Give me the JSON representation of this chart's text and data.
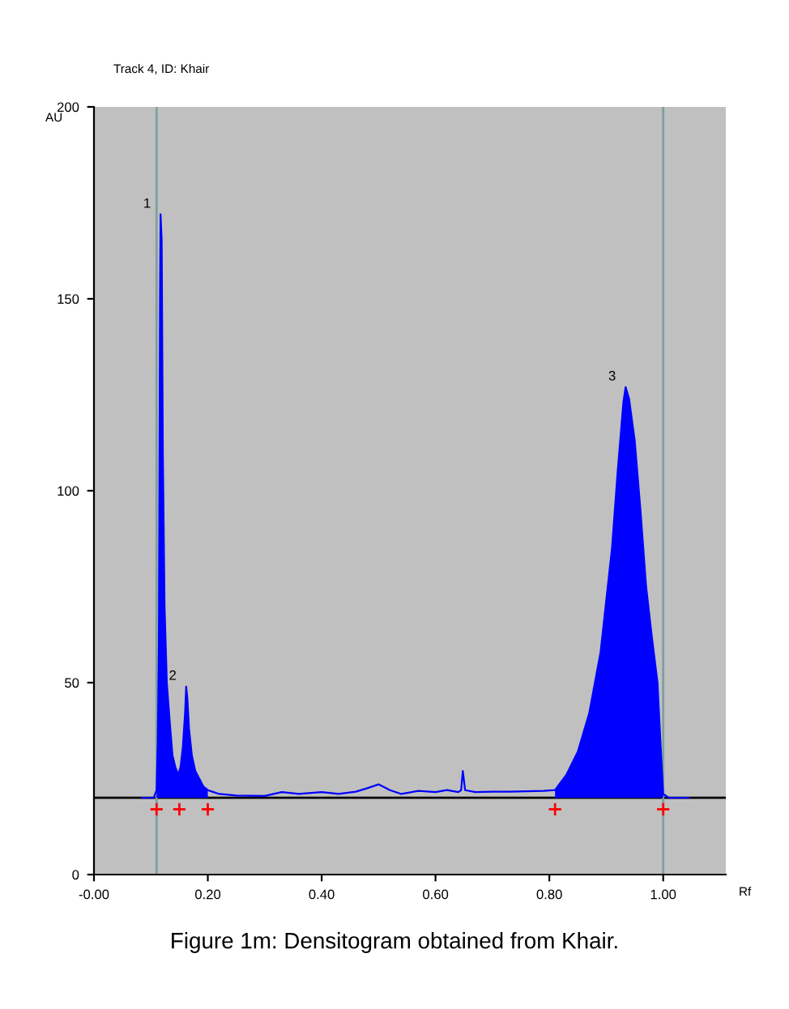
{
  "chart_data": {
    "type": "line",
    "title": "Track 4, ID: Khair",
    "xlabel": "Rf",
    "ylabel": "AU",
    "xlim": [
      0.0,
      1.11
    ],
    "ylim": [
      0,
      200
    ],
    "xticks": [
      {
        "value": 0.0,
        "label": "-0.00"
      },
      {
        "value": 0.2,
        "label": "0.20"
      },
      {
        "value": 0.4,
        "label": "0.40"
      },
      {
        "value": 0.6,
        "label": "0.60"
      },
      {
        "value": 0.8,
        "label": "0.80"
      },
      {
        "value": 1.0,
        "label": "1.00"
      }
    ],
    "yticks": [
      0,
      50,
      100,
      150,
      200
    ],
    "grid": false,
    "legend": false,
    "series": [
      {
        "color": "#0000ff",
        "x": [
          0.085,
          0.105,
          0.11,
          0.112,
          0.114,
          0.116,
          0.117,
          0.119,
          0.121,
          0.124,
          0.128,
          0.133,
          0.138,
          0.143,
          0.148,
          0.152,
          0.156,
          0.16,
          0.162,
          0.164,
          0.167,
          0.172,
          0.178,
          0.185,
          0.192,
          0.2,
          0.21,
          0.22,
          0.25,
          0.3,
          0.33,
          0.36,
          0.4,
          0.43,
          0.46,
          0.48,
          0.5,
          0.52,
          0.54,
          0.57,
          0.6,
          0.62,
          0.64,
          0.645,
          0.648,
          0.652,
          0.67,
          0.7,
          0.73,
          0.76,
          0.79,
          0.81,
          0.83,
          0.85,
          0.87,
          0.89,
          0.91,
          0.92,
          0.93,
          0.934,
          0.94,
          0.95,
          0.96,
          0.97,
          0.98,
          0.99,
          0.995,
          1.0,
          1.01,
          1.045
        ],
        "values": [
          20,
          20,
          22,
          34,
          60,
          150,
          172,
          165,
          110,
          70,
          50,
          40,
          31,
          28,
          26,
          28,
          33,
          42,
          49,
          46,
          38,
          31,
          27,
          25,
          23,
          22,
          21.5,
          21,
          20.6,
          20.5,
          21.5,
          21,
          21.5,
          21,
          21.6,
          22.5,
          23.5,
          22,
          21,
          21.8,
          21.5,
          22,
          21.5,
          22,
          27,
          22,
          21.5,
          21.6,
          21.6,
          21.7,
          21.8,
          22,
          26,
          32,
          42,
          58,
          85,
          105,
          123,
          127,
          124,
          113,
          95,
          75,
          62,
          50,
          35,
          21,
          20,
          20
        ],
        "lower": [
          null,
          null,
          20,
          20,
          20,
          20,
          20,
          20,
          20,
          20,
          20,
          20,
          20,
          20,
          20,
          20,
          20,
          20,
          20,
          20,
          20,
          20,
          20,
          20,
          20,
          20,
          null,
          null,
          null,
          null,
          null,
          null,
          null,
          null,
          null,
          null,
          null,
          null,
          null,
          null,
          null,
          null,
          null,
          null,
          null,
          null,
          null,
          null,
          null,
          null,
          null,
          20,
          20,
          20,
          20,
          20,
          20,
          20,
          20,
          20,
          20,
          20,
          20,
          20,
          20,
          20,
          20,
          20,
          null,
          null
        ],
        "upper": [
          null,
          null,
          22,
          34,
          60,
          150,
          172,
          165,
          110,
          70,
          50,
          40,
          31,
          28,
          26,
          28,
          33,
          42,
          49,
          46,
          38,
          31,
          27,
          25,
          23,
          22,
          null,
          null,
          null,
          null,
          null,
          null,
          null,
          null,
          null,
          null,
          null,
          null,
          null,
          null,
          null,
          null,
          null,
          null,
          null,
          null,
          null,
          null,
          null,
          null,
          null,
          22,
          26,
          32,
          42,
          58,
          85,
          105,
          123,
          127,
          124,
          113,
          95,
          75,
          62,
          50,
          35,
          21,
          null,
          null
        ]
      },
      {
        "type": "scatter",
        "color": "#ff0000",
        "marker": "cross",
        "x": [
          0.11,
          0.15,
          0.2,
          0.81,
          1.0
        ],
        "values": [
          17,
          17,
          17,
          17,
          17
        ]
      }
    ],
    "ref_lines": [
      {
        "axis": "y",
        "value": 20,
        "color": "#000000"
      },
      {
        "axis": "x",
        "value": 0.11,
        "color": "#7f9f9f"
      },
      {
        "axis": "x",
        "value": 1.0,
        "color": "#7f9f9f"
      }
    ],
    "annotations": [
      {
        "text": "1",
        "x": 0.117,
        "y": 172
      },
      {
        "text": "2",
        "x": 0.162,
        "y": 49
      },
      {
        "text": "3",
        "x": 0.934,
        "y": 127
      },
      "Figure 1m: Densitogram obtained from Khair."
    ]
  }
}
